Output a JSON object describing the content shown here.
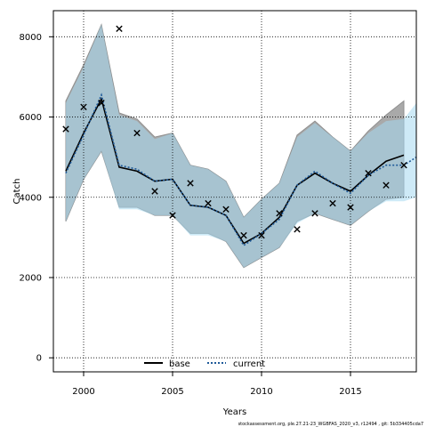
{
  "chart_data": {
    "type": "line",
    "xlabel": "Years",
    "ylabel": "Catch",
    "xlim": [
      1998.3,
      2018.7
    ],
    "ylim": [
      -350,
      8650
    ],
    "x_ticks": [
      2000,
      2005,
      2010,
      2015
    ],
    "y_ticks": [
      0,
      2000,
      4000,
      6000,
      8000
    ],
    "grid": true,
    "legend_position": "bottom-center",
    "legend": [
      {
        "label": "base",
        "style": "solid",
        "color": "#000000"
      },
      {
        "label": "current",
        "style": "dotted",
        "color": "#1f78b4"
      }
    ],
    "colors": {
      "base_band": "#a9a9a9",
      "current_band": "#a6d8f0",
      "overlap_band": "#a2c3d6",
      "base_line": "#000000",
      "current_line": "#1f5a99",
      "observed": "#000000"
    },
    "years": [
      1999,
      2000,
      2001,
      2002,
      2003,
      2004,
      2005,
      2006,
      2007,
      2008,
      2009,
      2010,
      2011,
      2012,
      2013,
      2014,
      2015,
      2016,
      2017,
      2018
    ],
    "base": {
      "years": [
        1999,
        2000,
        2001,
        2002,
        2003,
        2004,
        2005,
        2006,
        2007,
        2008,
        2009,
        2010,
        2011,
        2012,
        2013,
        2014,
        2015,
        2016,
        2017,
        2018
      ],
      "median": [
        4650,
        5600,
        6450,
        4750,
        4650,
        4400,
        4450,
        3800,
        3750,
        3550,
        2850,
        3100,
        3500,
        4300,
        4600,
        4350,
        4150,
        4550,
        4900,
        5050
      ],
      "lower": [
        3400,
        4450,
        5150,
        3750,
        3750,
        3550,
        3550,
        3100,
        3100,
        2900,
        2250,
        2500,
        2750,
        3400,
        3600,
        3450,
        3300,
        3650,
        3950,
        4000
      ],
      "upper": [
        6400,
        7300,
        8300,
        6100,
        5950,
        5500,
        5600,
        4800,
        4700,
        4400,
        3500,
        3950,
        4350,
        5550,
        5900,
        5500,
        5150,
        5650,
        6050,
        6400
      ]
    },
    "current": {
      "years": [
        1999,
        2000,
        2001,
        2002,
        2003,
        2004,
        2005,
        2006,
        2007,
        2008,
        2009,
        2010,
        2011,
        2012,
        2013,
        2014,
        2015,
        2016,
        2017,
        2018,
        2018.7
      ],
      "median": [
        4600,
        5550,
        6550,
        4800,
        4700,
        4400,
        4450,
        3800,
        3750,
        3550,
        2800,
        3100,
        3450,
        4300,
        4650,
        4350,
        4100,
        4550,
        4800,
        4800,
        5000
      ],
      "lower": [
        3400,
        4450,
        5150,
        3700,
        3700,
        3550,
        3550,
        3050,
        3050,
        2900,
        2250,
        2500,
        2750,
        3350,
        3600,
        3450,
        3300,
        3650,
        3900,
        3900,
        4000
      ],
      "upper": [
        6350,
        7250,
        8300,
        6050,
        5900,
        5450,
        5600,
        4800,
        4700,
        4400,
        3500,
        3950,
        4350,
        5500,
        5850,
        5500,
        5150,
        5600,
        5900,
        5950,
        6350
      ]
    },
    "observed": {
      "years": [
        1999,
        2000,
        2001,
        2002,
        2003,
        2004,
        2005,
        2006,
        2007,
        2008,
        2009,
        2010,
        2011,
        2012,
        2013,
        2014,
        2015,
        2016,
        2017,
        2018
      ],
      "values": [
        5700,
        6250,
        6350,
        8200,
        5600,
        4150,
        3550,
        4350,
        3850,
        3700,
        3050,
        3050,
        3600,
        3200,
        3600,
        3850,
        3750,
        4600,
        4300,
        4800
      ]
    }
  },
  "footer": "stockassessment.org, ple.27.21-23_WGBFAS_2020_v3, r12494 , git: 5b334405cda7"
}
